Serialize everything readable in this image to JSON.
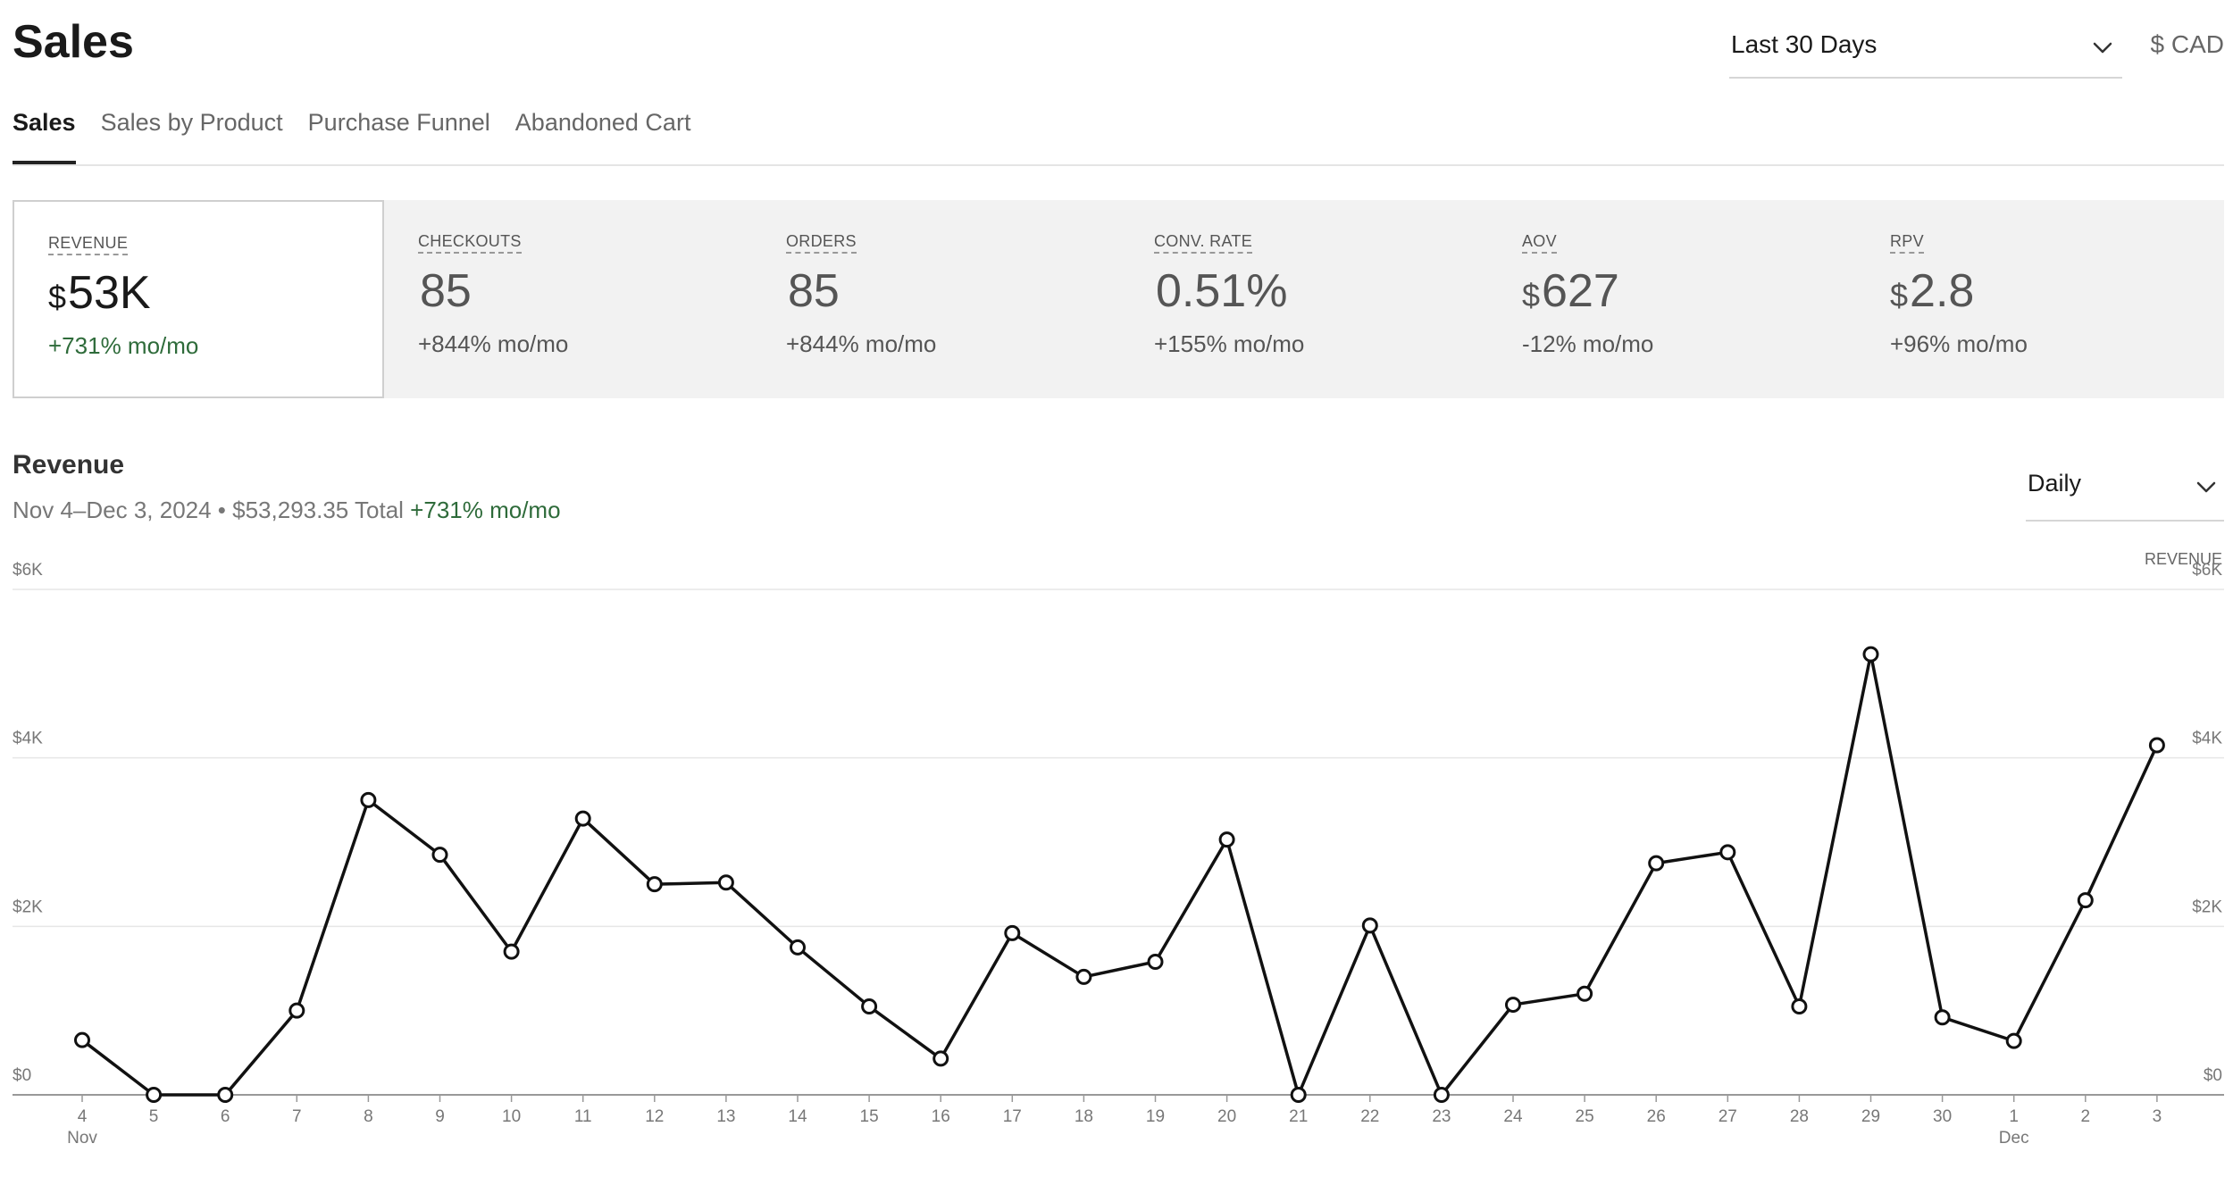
{
  "header": {
    "title": "Sales",
    "range": "Last 30 Days",
    "currency": "$ CAD"
  },
  "tabs": [
    {
      "label": "Sales",
      "active": true
    },
    {
      "label": "Sales by Product",
      "active": false
    },
    {
      "label": "Purchase Funnel",
      "active": false
    },
    {
      "label": "Abandoned Cart",
      "active": false
    }
  ],
  "metrics": [
    {
      "label": "REVENUE",
      "currency": "$",
      "value": "53K",
      "change": "+731% mo/mo",
      "active": true
    },
    {
      "label": "CHECKOUTS",
      "currency": "",
      "value": "85",
      "change": "+844% mo/mo",
      "active": false
    },
    {
      "label": "ORDERS",
      "currency": "",
      "value": "85",
      "change": "+844% mo/mo",
      "active": false
    },
    {
      "label": "CONV. RATE",
      "currency": "",
      "value": "0.51%",
      "change": "+155% mo/mo",
      "active": false
    },
    {
      "label": "AOV",
      "currency": "$",
      "value": "627",
      "change": "-12% mo/mo",
      "active": false
    },
    {
      "label": "RPV",
      "currency": "$",
      "value": "2.8",
      "change": "+96% mo/mo",
      "active": false
    }
  ],
  "chart_panel": {
    "title": "Revenue",
    "subtitle": "Nov 4–Dec 3, 2024 • $53,293.35 Total",
    "change": "+731% mo/mo",
    "granularity": "Daily"
  },
  "colors": {
    "accent_green": "#2e6b3a",
    "line": "#111111",
    "grid": "#e6e6e6",
    "metric_panel": "#f2f2f2"
  },
  "chart_data": {
    "type": "line",
    "title": "",
    "ylabel": "REVENUE",
    "ylim": [
      0,
      6000
    ],
    "yticks": [
      0,
      2000,
      4000,
      6000
    ],
    "ytick_labels": [
      "$0",
      "$2K",
      "$4K",
      "$6K"
    ],
    "grid": true,
    "x": [
      "4",
      "5",
      "6",
      "7",
      "8",
      "9",
      "10",
      "11",
      "12",
      "13",
      "14",
      "15",
      "16",
      "17",
      "18",
      "19",
      "20",
      "21",
      "22",
      "23",
      "24",
      "25",
      "26",
      "27",
      "28",
      "29",
      "30",
      "1",
      "2",
      "3"
    ],
    "month_labels": {
      "4": "Nov",
      "1": "Dec"
    },
    "series": [
      {
        "values": [
          650,
          0,
          0,
          1000,
          3500,
          2850,
          1700,
          3280,
          2500,
          2520,
          1750,
          1050,
          430,
          1920,
          1400,
          1580,
          3030,
          0,
          2010,
          0,
          1070,
          1200,
          2750,
          2880,
          1050,
          5230,
          920,
          640,
          2310,
          4150
        ]
      }
    ]
  }
}
